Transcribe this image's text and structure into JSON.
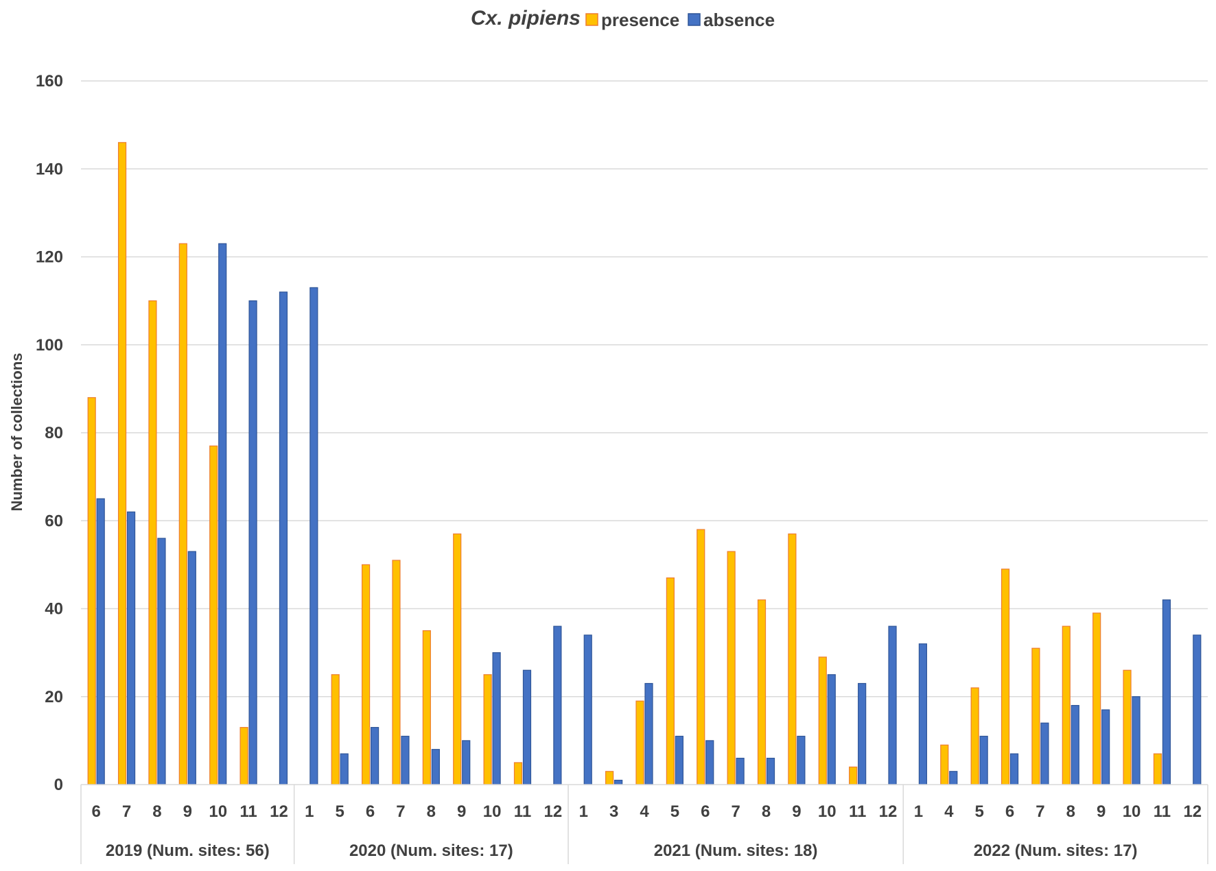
{
  "chart_data": {
    "type": "bar",
    "title": "Cx. pipiens",
    "ylabel": "Number of collections",
    "xlabel": "",
    "ylim": [
      0,
      160
    ],
    "yticks": [
      "0",
      "20",
      "40",
      "60",
      "80",
      "100",
      "120",
      "140",
      "160"
    ],
    "grid": true,
    "legend_position": "top",
    "groups": [
      {
        "label": "2019 (Num. sites: 56)",
        "categories": [
          "6",
          "7",
          "8",
          "9",
          "10",
          "11",
          "12"
        ]
      },
      {
        "label": "2020 (Num. sites: 17)",
        "categories": [
          "1",
          "5",
          "6",
          "7",
          "8",
          "9",
          "10",
          "11",
          "12"
        ]
      },
      {
        "label": "2021 (Num. sites: 18)",
        "categories": [
          "1",
          "3",
          "4",
          "5",
          "6",
          "7",
          "8",
          "9",
          "10",
          "11",
          "12"
        ]
      },
      {
        "label": "2022 (Num. sites: 17)",
        "categories": [
          "1",
          "4",
          "5",
          "6",
          "7",
          "8",
          "9",
          "10",
          "11",
          "12"
        ]
      }
    ],
    "series": [
      {
        "name": "presence",
        "color": "#FFC000",
        "stroke": "#ED7D31",
        "values": [
          88,
          146,
          110,
          123,
          77,
          13,
          0,
          0,
          25,
          50,
          51,
          35,
          57,
          25,
          5,
          0,
          0,
          3,
          19,
          47,
          58,
          53,
          42,
          57,
          29,
          4,
          0,
          0,
          9,
          22,
          49,
          31,
          36,
          39,
          26,
          7,
          0
        ]
      },
      {
        "name": "absence",
        "color": "#4472C4",
        "stroke": "#2F5597",
        "values": [
          65,
          62,
          56,
          53,
          123,
          110,
          112,
          113,
          7,
          13,
          11,
          8,
          10,
          30,
          26,
          36,
          34,
          1,
          23,
          11,
          10,
          6,
          6,
          11,
          25,
          23,
          36,
          32,
          3,
          11,
          7,
          14,
          18,
          17,
          20,
          42,
          34
        ]
      }
    ]
  }
}
